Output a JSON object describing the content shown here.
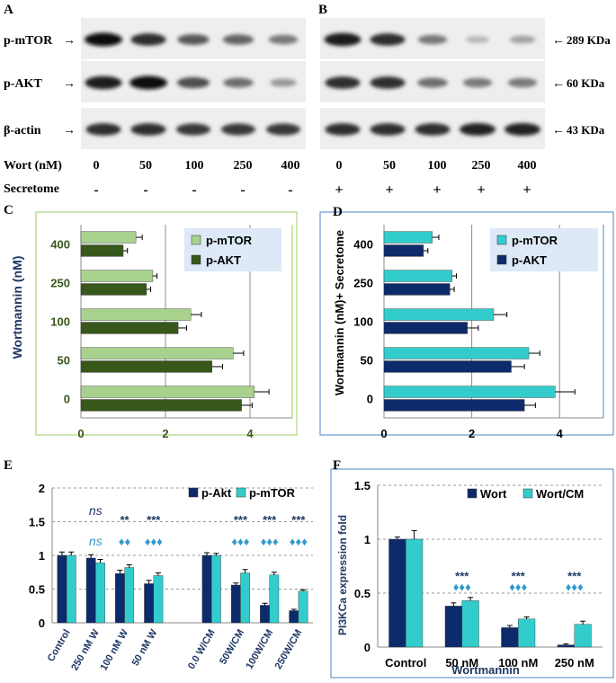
{
  "blots": {
    "panel_letters": [
      "A",
      "B"
    ],
    "rows": [
      {
        "label": "p-mTOR",
        "size": "289 KDa",
        "intensity_A": [
          1.0,
          0.85,
          0.65,
          0.6,
          0.5
        ],
        "intensity_B": [
          0.95,
          0.85,
          0.5,
          0.2,
          0.3
        ]
      },
      {
        "label": "p-AKT",
        "size": "60 KDa",
        "intensity_A": [
          0.95,
          1.0,
          0.7,
          0.55,
          0.35
        ],
        "intensity_B": [
          0.85,
          0.85,
          0.55,
          0.5,
          0.5
        ]
      },
      {
        "label": "β-actin",
        "size": "43 KDa",
        "intensity_A": [
          0.85,
          0.85,
          0.8,
          0.8,
          0.8
        ],
        "intensity_B": [
          0.85,
          0.85,
          0.85,
          0.9,
          0.9
        ]
      }
    ],
    "wort_label": "Wort (nM)",
    "doses": [
      "0",
      "50",
      "100",
      "250",
      "400"
    ],
    "secretome_label": "Secretome",
    "secretome_A": [
      "-",
      "-",
      "-",
      "-",
      "-"
    ],
    "secretome_B": [
      "+",
      "+",
      "+",
      "+",
      "+"
    ]
  },
  "chart_data": [
    {
      "id": "C",
      "panel": "C",
      "type": "bar",
      "orientation": "horizontal",
      "ylabel": "Wortmannin (nM)",
      "xlabel": "",
      "categories": [
        "0",
        "50",
        "100",
        "250",
        "400"
      ],
      "series": [
        {
          "name": "p-mTOR",
          "color": "#a9d18e",
          "values": [
            4.1,
            3.6,
            2.6,
            1.7,
            1.3
          ],
          "errors": [
            0.35,
            0.25,
            0.25,
            0.1,
            0.15
          ]
        },
        {
          "name": "p-AKT",
          "color": "#38571a",
          "values": [
            3.8,
            3.1,
            2.3,
            1.55,
            1.0
          ],
          "errors": [
            0.25,
            0.25,
            0.2,
            0.1,
            0.1
          ]
        }
      ],
      "xlim": [
        0,
        5
      ],
      "xticks": [
        "0",
        "2",
        "4"
      ]
    },
    {
      "id": "D",
      "panel": "D",
      "type": "bar",
      "orientation": "horizontal",
      "ylabel": "Wortmannin (nM)+ Secretome",
      "xlabel": "",
      "categories": [
        "0",
        "50",
        "100",
        "250",
        "400"
      ],
      "series": [
        {
          "name": "p-mTOR",
          "color": "#33cccc",
          "values": [
            3.9,
            3.3,
            2.5,
            1.55,
            1.1
          ],
          "errors": [
            0.45,
            0.25,
            0.3,
            0.1,
            0.15
          ]
        },
        {
          "name": "p-AKT",
          "color": "#0d2a6b",
          "values": [
            3.2,
            2.9,
            1.9,
            1.5,
            0.9
          ],
          "errors": [
            0.25,
            0.3,
            0.25,
            0.1,
            0.1
          ]
        }
      ],
      "xlim": [
        0,
        5
      ],
      "xticks": [
        "0",
        "2",
        "4"
      ]
    },
    {
      "id": "E",
      "panel": "E",
      "type": "bar",
      "categories": [
        "Control",
        "250 nM W",
        "100 nM W",
        "50 nM W",
        "",
        "0.0 W/CM",
        "50W/CM",
        "100W/CM",
        "250W/CM"
      ],
      "series": [
        {
          "name": "p-Akt",
          "color": "#0d2a6b",
          "values": [
            1.0,
            0.96,
            0.73,
            0.58,
            null,
            1.0,
            0.56,
            0.26,
            0.18
          ],
          "errors": [
            0.05,
            0.05,
            0.05,
            0.05,
            null,
            0.04,
            0.03,
            0.03,
            0.02
          ]
        },
        {
          "name": "p-mTOR",
          "color": "#33cccc",
          "values": [
            1.0,
            0.89,
            0.82,
            0.7,
            null,
            1.0,
            0.74,
            0.71,
            0.47
          ],
          "errors": [
            0.05,
            0.05,
            0.04,
            0.04,
            null,
            0.03,
            0.05,
            0.04,
            0.02
          ]
        }
      ],
      "ylim": [
        0,
        2
      ],
      "yticks": [
        "0",
        "0.5",
        "1",
        "1.5",
        "2"
      ],
      "annotations": [
        {
          "text": "ns",
          "category": 1,
          "level": 1.6,
          "color": "#1f3864",
          "italic": true
        },
        {
          "text": "ns",
          "category": 1,
          "level": 1.15,
          "color": "#3399cc",
          "italic": true
        },
        {
          "text": "**",
          "category": 2,
          "level": 1.47,
          "color": "#1f3864"
        },
        {
          "text": "♦♦",
          "category": 2,
          "level": 1.15,
          "color": "#3399cc"
        },
        {
          "text": "***",
          "category": 3,
          "level": 1.47,
          "color": "#1f3864"
        },
        {
          "text": "♦♦♦",
          "category": 3,
          "level": 1.15,
          "color": "#3399cc"
        },
        {
          "text": "***",
          "category": 6,
          "level": 1.47,
          "color": "#1f3864"
        },
        {
          "text": "♦♦♦",
          "category": 6,
          "level": 1.15,
          "color": "#3399cc"
        },
        {
          "text": "***",
          "category": 7,
          "level": 1.47,
          "color": "#1f3864"
        },
        {
          "text": "♦♦♦",
          "category": 7,
          "level": 1.15,
          "color": "#3399cc"
        },
        {
          "text": "***",
          "category": 8,
          "level": 1.47,
          "color": "#1f3864"
        },
        {
          "text": "♦♦♦",
          "category": 8,
          "level": 1.15,
          "color": "#3399cc"
        }
      ]
    },
    {
      "id": "F",
      "panel": "F",
      "type": "bar",
      "ylabel": "PI3KCa expression fold",
      "xlabel": "Wortmannin",
      "categories": [
        "Control",
        "50 nM",
        "100 nM",
        "250 nM"
      ],
      "series": [
        {
          "name": "Wort",
          "color": "#0d2a6b",
          "values": [
            1.0,
            0.38,
            0.18,
            0.02
          ],
          "errors": [
            0.02,
            0.03,
            0.02,
            0.01
          ]
        },
        {
          "name": "Wort/CM",
          "color": "#33cccc",
          "values": [
            1.0,
            0.43,
            0.26,
            0.21
          ],
          "errors": [
            0.08,
            0.03,
            0.02,
            0.03
          ]
        }
      ],
      "ylim": [
        0,
        1.5
      ],
      "yticks": [
        "0",
        "0.5",
        "1",
        "1.5"
      ],
      "annotations": [
        {
          "text": "***",
          "category": 1,
          "level": 0.62,
          "color": "#1f3864"
        },
        {
          "text": "♦♦♦",
          "category": 1,
          "level": 0.52,
          "color": "#3399cc"
        },
        {
          "text": "***",
          "category": 2,
          "level": 0.62,
          "color": "#1f3864"
        },
        {
          "text": "♦♦♦",
          "category": 2,
          "level": 0.52,
          "color": "#3399cc"
        },
        {
          "text": "***",
          "category": 3,
          "level": 0.62,
          "color": "#1f3864"
        },
        {
          "text": "♦♦♦",
          "category": 3,
          "level": 0.52,
          "color": "#3399cc"
        }
      ]
    }
  ]
}
